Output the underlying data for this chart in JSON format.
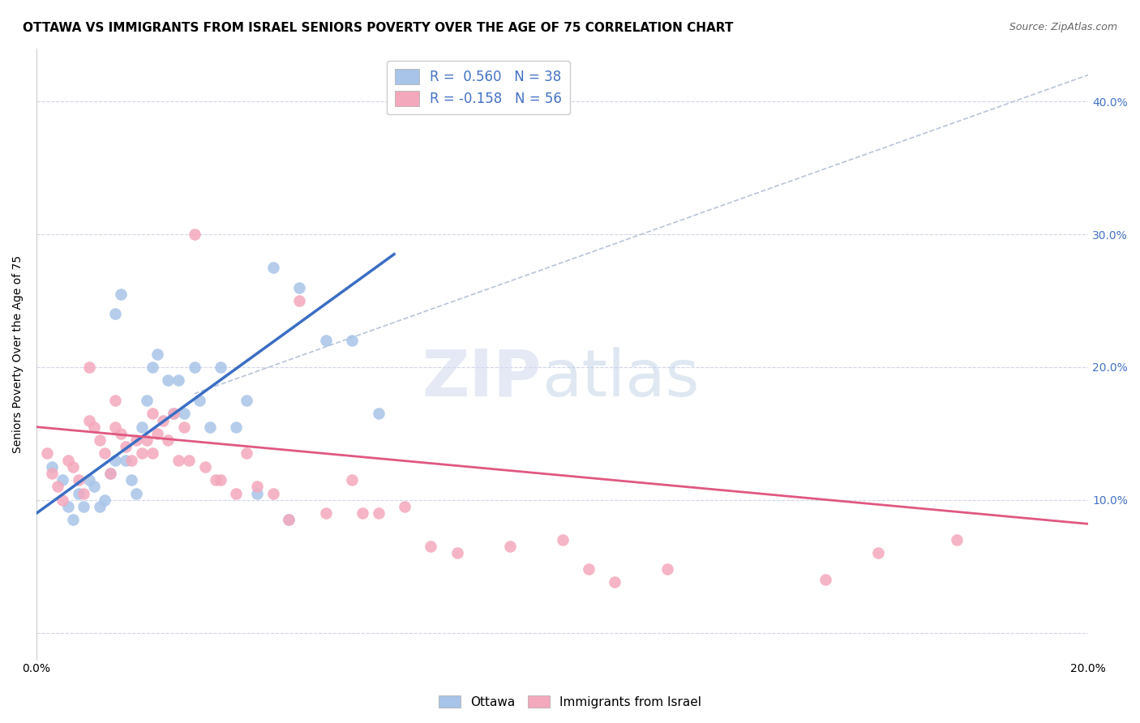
{
  "title": "OTTAWA VS IMMIGRANTS FROM ISRAEL SENIORS POVERTY OVER THE AGE OF 75 CORRELATION CHART",
  "source": "Source: ZipAtlas.com",
  "ylabel": "Seniors Poverty Over the Age of 75",
  "xlim": [
    0.0,
    0.2
  ],
  "ylim": [
    -0.02,
    0.44
  ],
  "blue_color": "#a8c4e8",
  "pink_color": "#f4a8bc",
  "blue_line_color": "#3a6ec4",
  "pink_line_color": "#e05880",
  "diag_line_color": "#b8c4d8",
  "watermark_zip": "ZIP",
  "watermark_atlas": "atlas",
  "grid_color": "#d0d5e8",
  "background_color": "#ffffff",
  "title_fontsize": 11,
  "axis_label_fontsize": 10,
  "tick_fontsize": 10,
  "blue_scatter_x": [
    0.003,
    0.005,
    0.006,
    0.007,
    0.008,
    0.009,
    0.01,
    0.011,
    0.012,
    0.013,
    0.014,
    0.015,
    0.015,
    0.016,
    0.017,
    0.018,
    0.019,
    0.02,
    0.021,
    0.022,
    0.023,
    0.025,
    0.026,
    0.027,
    0.028,
    0.03,
    0.031,
    0.033,
    0.035,
    0.038,
    0.04,
    0.042,
    0.045,
    0.048,
    0.05,
    0.055,
    0.06,
    0.065
  ],
  "blue_scatter_y": [
    0.125,
    0.115,
    0.095,
    0.085,
    0.105,
    0.095,
    0.115,
    0.11,
    0.095,
    0.1,
    0.12,
    0.13,
    0.24,
    0.255,
    0.13,
    0.115,
    0.105,
    0.155,
    0.175,
    0.2,
    0.21,
    0.19,
    0.165,
    0.19,
    0.165,
    0.2,
    0.175,
    0.155,
    0.2,
    0.155,
    0.175,
    0.105,
    0.275,
    0.085,
    0.26,
    0.22,
    0.22,
    0.165
  ],
  "pink_scatter_x": [
    0.002,
    0.003,
    0.004,
    0.005,
    0.006,
    0.007,
    0.008,
    0.009,
    0.01,
    0.01,
    0.011,
    0.012,
    0.013,
    0.014,
    0.015,
    0.015,
    0.016,
    0.017,
    0.018,
    0.019,
    0.02,
    0.021,
    0.022,
    0.022,
    0.023,
    0.024,
    0.025,
    0.026,
    0.027,
    0.028,
    0.029,
    0.03,
    0.032,
    0.034,
    0.035,
    0.038,
    0.04,
    0.042,
    0.045,
    0.048,
    0.05,
    0.055,
    0.06,
    0.062,
    0.065,
    0.07,
    0.075,
    0.08,
    0.09,
    0.1,
    0.105,
    0.11,
    0.12,
    0.15,
    0.16,
    0.175
  ],
  "pink_scatter_y": [
    0.135,
    0.12,
    0.11,
    0.1,
    0.13,
    0.125,
    0.115,
    0.105,
    0.16,
    0.2,
    0.155,
    0.145,
    0.135,
    0.12,
    0.155,
    0.175,
    0.15,
    0.14,
    0.13,
    0.145,
    0.135,
    0.145,
    0.165,
    0.135,
    0.15,
    0.16,
    0.145,
    0.165,
    0.13,
    0.155,
    0.13,
    0.3,
    0.125,
    0.115,
    0.115,
    0.105,
    0.135,
    0.11,
    0.105,
    0.085,
    0.25,
    0.09,
    0.115,
    0.09,
    0.09,
    0.095,
    0.065,
    0.06,
    0.065,
    0.07,
    0.048,
    0.038,
    0.048,
    0.04,
    0.06,
    0.07
  ],
  "blue_line_x": [
    0.0,
    0.068
  ],
  "blue_line_y": [
    0.09,
    0.285
  ],
  "pink_line_x": [
    0.0,
    0.2
  ],
  "pink_line_y": [
    0.155,
    0.082
  ],
  "diag_line_x": [
    0.03,
    0.2
  ],
  "diag_line_y": [
    0.18,
    0.42
  ]
}
